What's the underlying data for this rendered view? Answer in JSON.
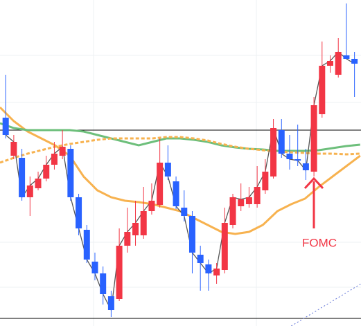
{
  "chart_data": {
    "type": "candlestick",
    "xlim": [
      -0.7,
      43.8
    ],
    "ylim": [
      0,
      471
    ],
    "up_color": "#f23645",
    "down_color": "#2962ff",
    "close_line_color": "#555555",
    "x": [
      0,
      1,
      2,
      3,
      4,
      5,
      6,
      7,
      8,
      9,
      10,
      11,
      12,
      13,
      14,
      15,
      16,
      17,
      18,
      19,
      20,
      21,
      22,
      23,
      24,
      25,
      26,
      27,
      28,
      29,
      30,
      31,
      32,
      33,
      34,
      35,
      36,
      37,
      38,
      39,
      40,
      41,
      42,
      43
    ],
    "open": [
      301,
      246,
      243,
      186,
      199,
      213,
      233,
      246,
      256,
      186,
      139,
      93,
      76,
      43,
      39,
      116,
      131,
      131,
      166,
      175,
      236,
      209,
      171,
      159,
      103,
      89,
      73,
      81,
      146,
      173,
      176,
      176,
      196,
      216,
      283,
      249,
      241,
      235,
      223,
      306,
      376,
      363,
      391,
      386
    ],
    "close": [
      276,
      266,
      186,
      203,
      213,
      233,
      249,
      259,
      186,
      141,
      96,
      76,
      46,
      23,
      116,
      136,
      149,
      166,
      181,
      236,
      216,
      173,
      159,
      106,
      91,
      76,
      83,
      149,
      186,
      183,
      186,
      201,
      223,
      286,
      249,
      241,
      239,
      225,
      319,
      376,
      383,
      396,
      386,
      379
    ],
    "high": [
      363,
      276,
      256,
      216,
      223,
      246,
      266,
      283,
      261,
      191,
      146,
      106,
      86,
      51,
      141,
      171,
      181,
      201,
      206,
      271,
      261,
      216,
      196,
      166,
      116,
      96,
      91,
      171,
      191,
      206,
      201,
      231,
      241,
      299,
      299,
      276,
      291,
      256,
      331,
      411,
      391,
      416,
      466,
      396
    ],
    "low": [
      271,
      241,
      181,
      159,
      196,
      209,
      226,
      241,
      181,
      131,
      91,
      66,
      31,
      13,
      36,
      106,
      116,
      126,
      161,
      171,
      211,
      169,
      151,
      76,
      51,
      51,
      61,
      76,
      141,
      166,
      171,
      171,
      191,
      213,
      243,
      226,
      231,
      211,
      216,
      301,
      366,
      359,
      386,
      331
    ],
    "lines": [
      {
        "color": "#f7b24f",
        "dash": false,
        "x": [
          -0.7,
          1.0,
          2.7,
          4.4,
          6.1,
          7.9,
          9.6,
          11.3,
          13.0,
          14.7,
          16.4,
          18.1,
          19.8,
          21.5,
          23.2,
          24.9,
          26.6,
          28.3,
          30.0,
          31.7,
          33.5,
          35.2,
          36.9,
          38.6,
          40.3,
          42.0,
          43.7
        ],
        "values": [
          316,
          296,
          281,
          271,
          261,
          246,
          216,
          196,
          186,
          181,
          179,
          176,
          171,
          166,
          156,
          146,
          136,
          133,
          136,
          146,
          166,
          176,
          184,
          201,
          216,
          231,
          246
        ]
      },
      {
        "color": "#6dbf7b",
        "dash": false,
        "x": [
          -0.7,
          1.0,
          2.7,
          4.4,
          6.1,
          7.9,
          9.6,
          11.3,
          13.0,
          14.7,
          16.4,
          18.1,
          19.8,
          21.5,
          23.2,
          24.9,
          26.6,
          28.3,
          30.0,
          31.7,
          33.5,
          35.2,
          36.9,
          38.6,
          40.3,
          42.0,
          43.7
        ],
        "values": [
          293,
          286,
          283,
          283,
          283,
          283,
          281,
          276,
          271,
          266,
          261,
          266,
          271,
          271,
          269,
          266,
          261,
          258,
          256,
          255,
          253,
          253,
          253,
          254,
          257,
          260,
          262
        ]
      },
      {
        "color": "#f7b24f",
        "dash": true,
        "x": [
          -0.7,
          1.0,
          2.7,
          4.4,
          6.1,
          7.9,
          9.6,
          11.3,
          13.0,
          14.7,
          16.4,
          18.1,
          19.8,
          21.5,
          23.2,
          24.9,
          26.6,
          28.3,
          30.0,
          31.7,
          33.5,
          35.2,
          36.9,
          38.6,
          40.3,
          42.0,
          43.7
        ],
        "values": [
          236,
          243,
          249,
          254,
          259,
          263,
          266,
          269,
          271,
          271,
          271,
          271,
          273,
          273,
          271,
          268,
          263,
          259,
          256,
          254,
          252,
          251,
          250,
          249,
          249,
          248,
          249
        ]
      },
      {
        "color": "#5b6fd6",
        "dotted": true,
        "x": [
          35.2,
          43.8
        ],
        "values": [
          0,
          61
        ]
      }
    ],
    "hlines": [
      {
        "value": 283,
        "color": "#000000"
      },
      {
        "value": 11,
        "color": "#000000"
      }
    ],
    "annotation": "FOMC"
  }
}
